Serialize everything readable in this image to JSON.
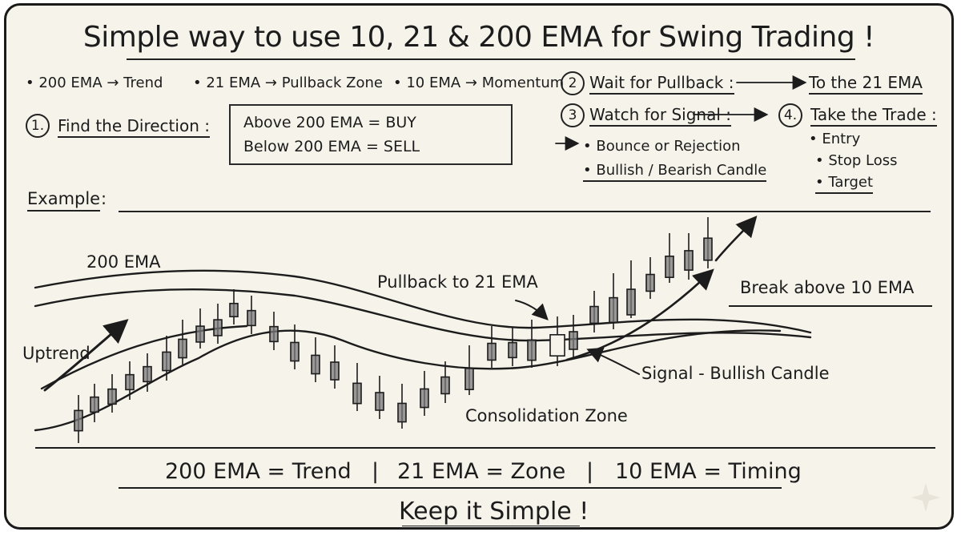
{
  "title": "Simple way to use 10, 21 & 200 EMA for Swing Trading !",
  "legend": {
    "ema200": "• 200 EMA → Trend",
    "ema21": "• 21 EMA → Pullback Zone",
    "ema10": "• 10 EMA → Momentum"
  },
  "steps": {
    "s1_num": "1.",
    "s1_label": "Find the Direction :",
    "s1_box_line1": "Above 200 EMA = BUY",
    "s1_box_line2": "Below 200 EMA = SELL",
    "s2_num": "2",
    "s2_label": "Wait for Pullback :",
    "s2_target": "To the 21 EMA",
    "s3_num": "3",
    "s3_label": "Watch for Signal :",
    "s3_bullet1": "• Bounce or Rejection",
    "s3_bullet2": "• Bullish / Bearish Candle",
    "s4_num": "4.",
    "s4_label": "Take the Trade :",
    "s4_bullets": [
      "• Entry",
      "• Stop Loss",
      "• Target"
    ]
  },
  "example": {
    "heading": "Example",
    "colon": ":",
    "labels": {
      "ema200": "200 EMA",
      "uptrend": "Uptrend",
      "pullback": "Pullback to 21 EMA",
      "break": "Break above 10 EMA",
      "signal": "Signal - Bullish Candle",
      "consolidation": "Consolidation Zone"
    }
  },
  "summary": {
    "trend": "200 EMA = Trend",
    "sep1": "|",
    "zone": "21 EMA = Zone",
    "sep2": "|",
    "timing": "10 EMA = Timing",
    "footer": "Keep it Simple !"
  },
  "colors": {
    "ink": "#1c1c1c",
    "paper": "#f6f3ea",
    "candle": "#7a7a7a"
  }
}
